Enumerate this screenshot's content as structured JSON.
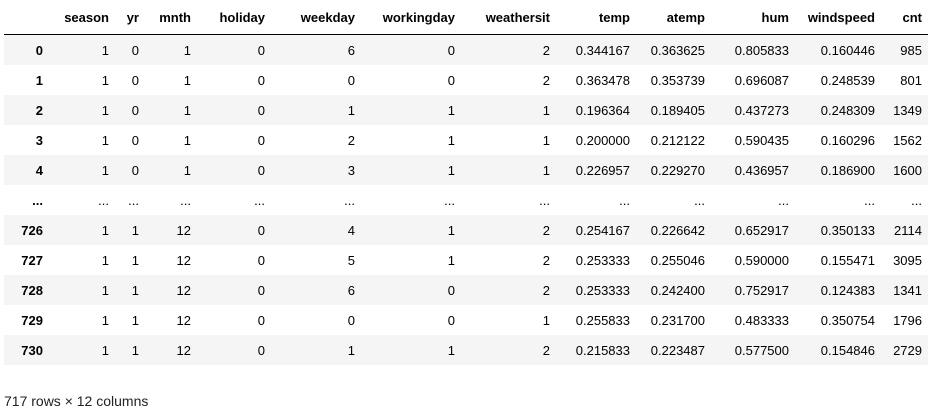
{
  "dataframe": {
    "index_header": "",
    "columns": [
      "season",
      "yr",
      "mnth",
      "holiday",
      "weekday",
      "workingday",
      "weathersit",
      "temp",
      "atemp",
      "hum",
      "windspeed",
      "cnt"
    ],
    "rows": [
      {
        "index": "0",
        "cells": [
          "1",
          "0",
          "1",
          "0",
          "6",
          "0",
          "2",
          "0.344167",
          "0.363625",
          "0.805833",
          "0.160446",
          "985"
        ]
      },
      {
        "index": "1",
        "cells": [
          "1",
          "0",
          "1",
          "0",
          "0",
          "0",
          "2",
          "0.363478",
          "0.353739",
          "0.696087",
          "0.248539",
          "801"
        ]
      },
      {
        "index": "2",
        "cells": [
          "1",
          "0",
          "1",
          "0",
          "1",
          "1",
          "1",
          "0.196364",
          "0.189405",
          "0.437273",
          "0.248309",
          "1349"
        ]
      },
      {
        "index": "3",
        "cells": [
          "1",
          "0",
          "1",
          "0",
          "2",
          "1",
          "1",
          "0.200000",
          "0.212122",
          "0.590435",
          "0.160296",
          "1562"
        ]
      },
      {
        "index": "4",
        "cells": [
          "1",
          "0",
          "1",
          "0",
          "3",
          "1",
          "1",
          "0.226957",
          "0.229270",
          "0.436957",
          "0.186900",
          "1600"
        ]
      },
      {
        "index": "...",
        "cells": [
          "...",
          "...",
          "...",
          "...",
          "...",
          "...",
          "...",
          "...",
          "...",
          "...",
          "...",
          "..."
        ]
      },
      {
        "index": "726",
        "cells": [
          "1",
          "1",
          "12",
          "0",
          "4",
          "1",
          "2",
          "0.254167",
          "0.226642",
          "0.652917",
          "0.350133",
          "2114"
        ]
      },
      {
        "index": "727",
        "cells": [
          "1",
          "1",
          "12",
          "0",
          "5",
          "1",
          "2",
          "0.253333",
          "0.255046",
          "0.590000",
          "0.155471",
          "3095"
        ]
      },
      {
        "index": "728",
        "cells": [
          "1",
          "1",
          "12",
          "0",
          "6",
          "0",
          "2",
          "0.253333",
          "0.242400",
          "0.752917",
          "0.124383",
          "1341"
        ]
      },
      {
        "index": "729",
        "cells": [
          "1",
          "1",
          "12",
          "0",
          "0",
          "0",
          "1",
          "0.255833",
          "0.231700",
          "0.483333",
          "0.350754",
          "1796"
        ]
      },
      {
        "index": "730",
        "cells": [
          "1",
          "1",
          "12",
          "0",
          "1",
          "1",
          "2",
          "0.215833",
          "0.223487",
          "0.577500",
          "0.154846",
          "2729"
        ]
      }
    ],
    "shape_text": "717 rows × 12 columns"
  },
  "colors": {
    "striped_row": "#f5f5f5",
    "plain_row": "#ffffff",
    "header_rule": "#000000"
  }
}
